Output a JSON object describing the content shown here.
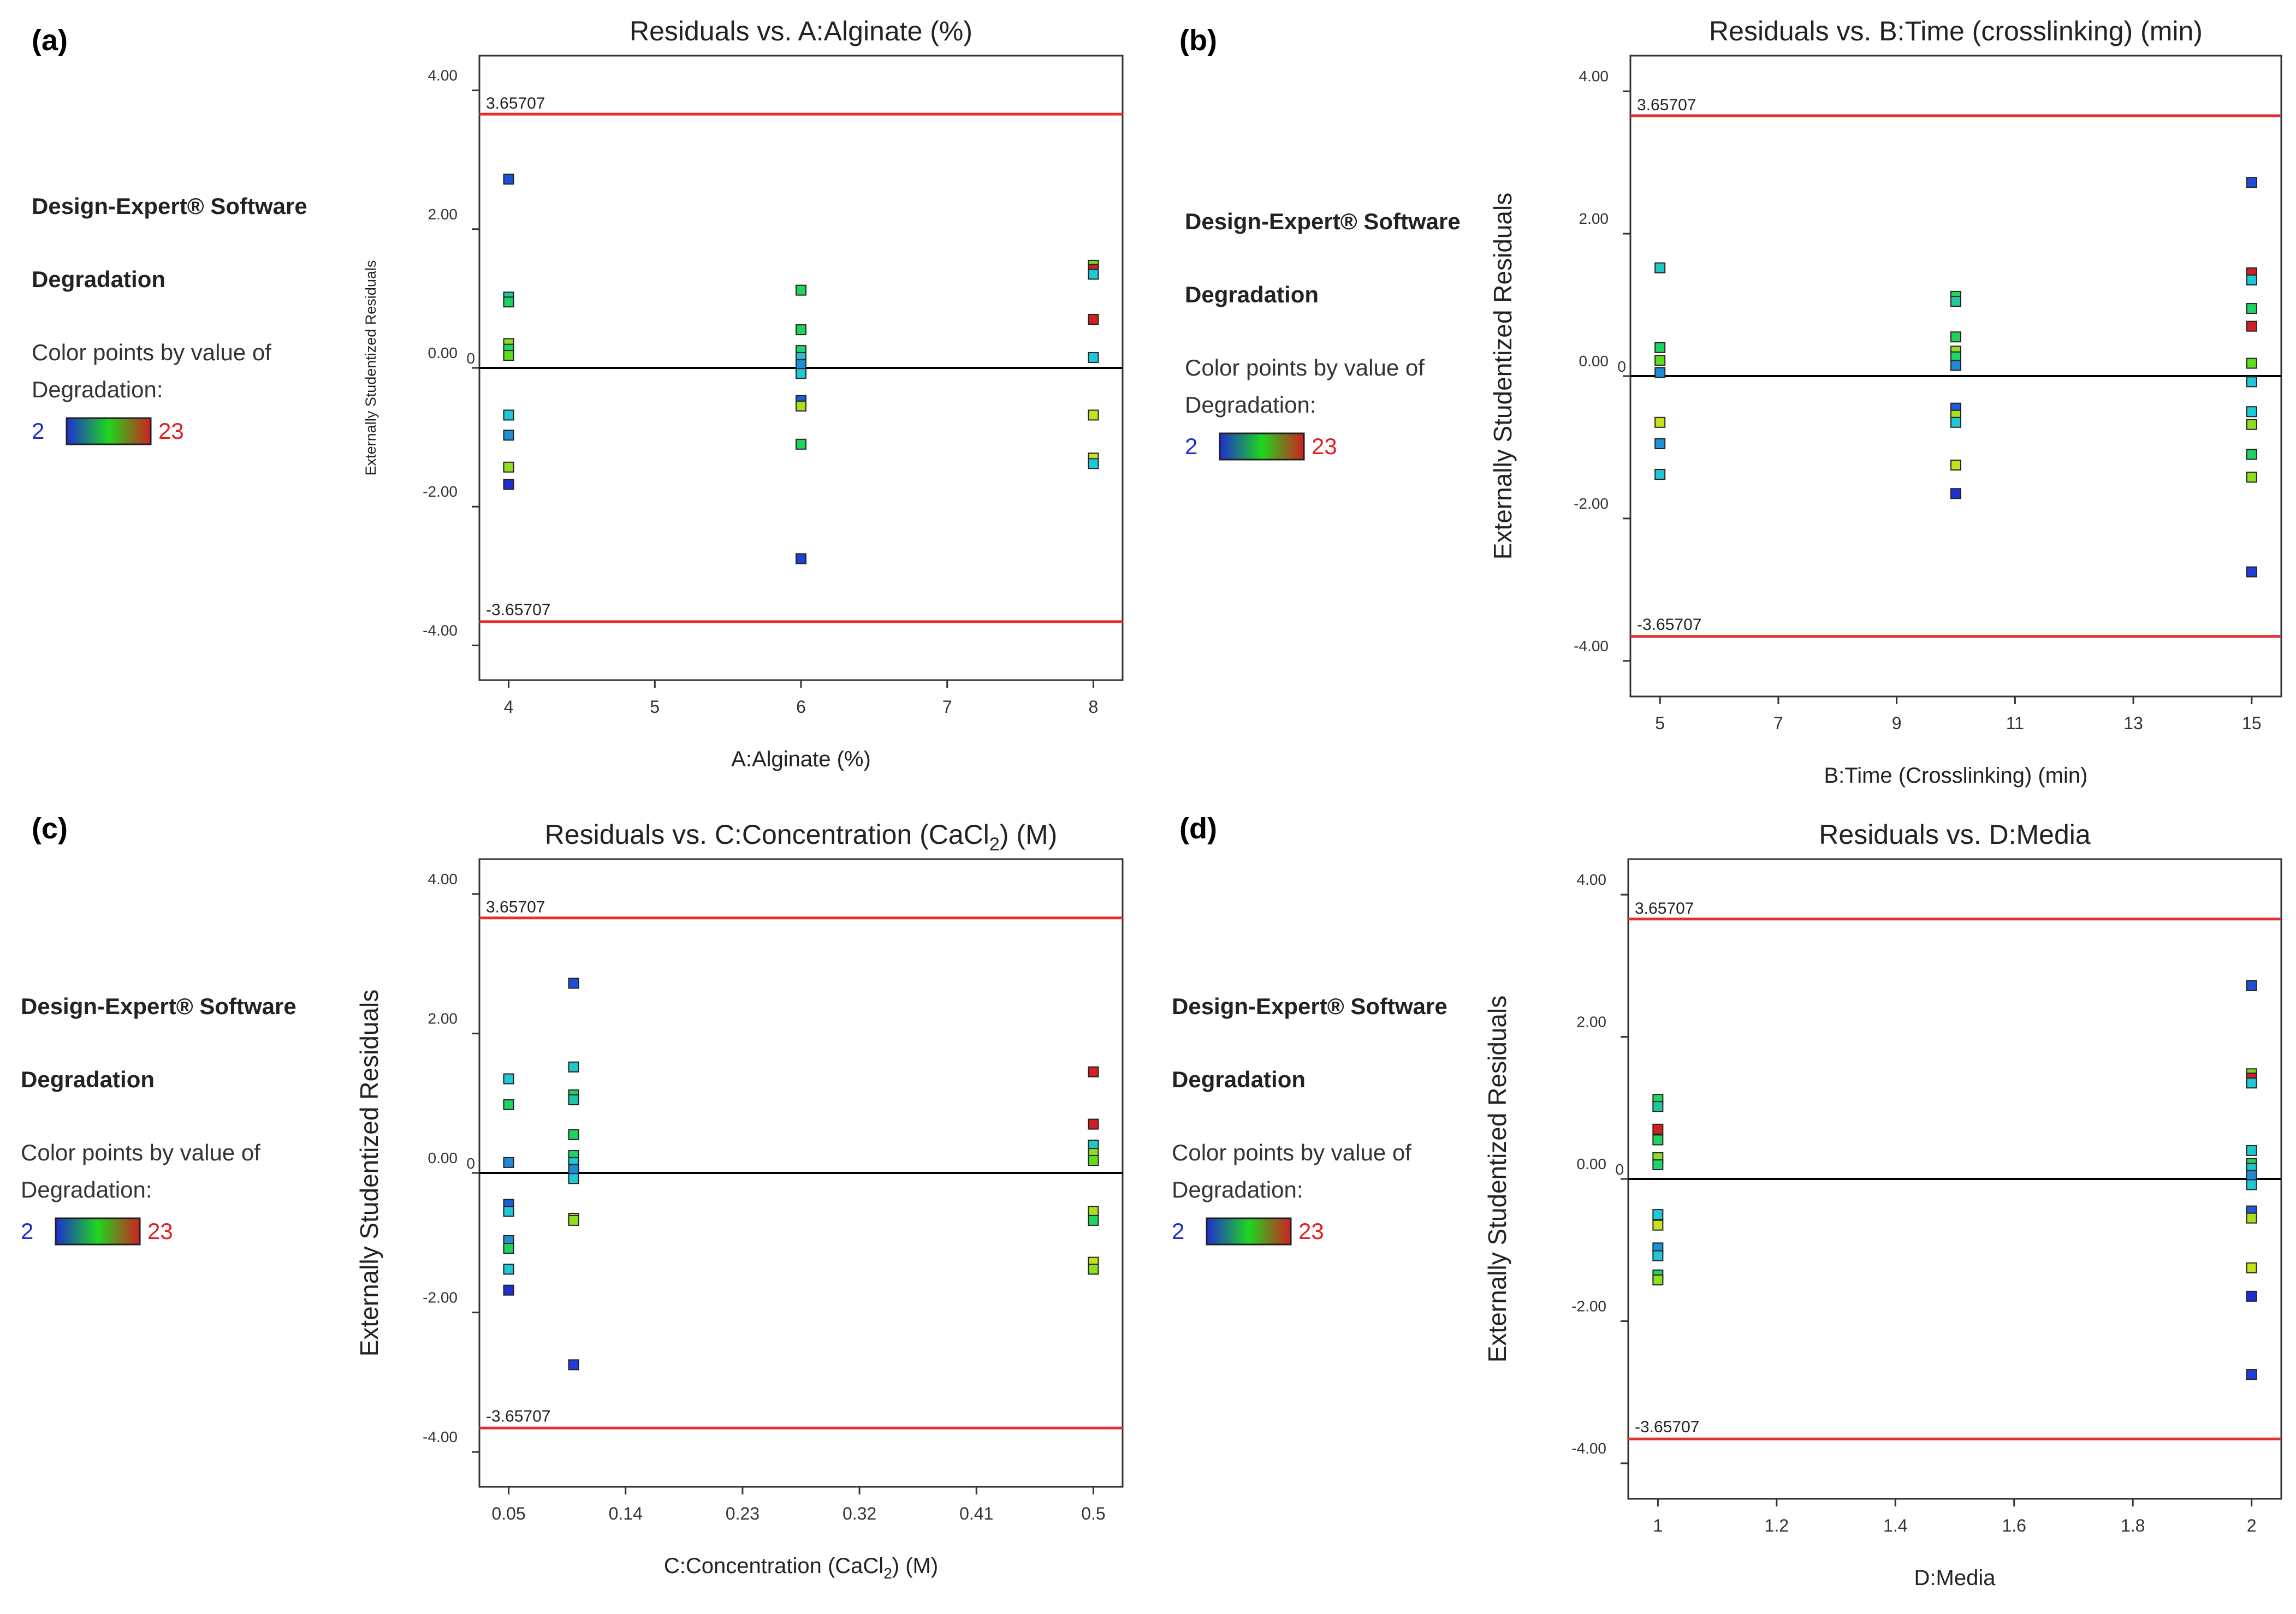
{
  "legend_text": {
    "software": "Design-Expert® Software",
    "response": "Degradation",
    "color_by": "Color points by value of",
    "color_by_2": "Degradation:",
    "min": "2",
    "max": "23",
    "colors": {
      "low": "#1e2fd0",
      "mid": "#1ed61e",
      "high": "#d02020"
    }
  },
  "chart_data": [
    {
      "panel": "(a)",
      "type": "scatter",
      "title": "Residuals vs. A:Alginate (%)",
      "xlabel": "A:Alginate (%)",
      "ylabel": "Externally Studentized Residuals",
      "xlim": [
        3.8,
        8.2
      ],
      "ylim": [
        -4.5,
        4.5
      ],
      "xticks": [
        "4",
        "5",
        "6",
        "7",
        "8"
      ],
      "yticks": [
        "4.00",
        "2.00",
        "0.00",
        "-2.00",
        "-4.00"
      ],
      "zero_label": "0",
      "limit_upper": 3.65707,
      "limit_lower": -3.65707,
      "limit_upper_label": "3.65707",
      "limit_lower_label": "-3.65707",
      "points": [
        {
          "x": 4,
          "y": 2.72,
          "c": "#1e4fd8"
        },
        {
          "x": 4,
          "y": 1.02,
          "c": "#1ec8a0"
        },
        {
          "x": 4,
          "y": 0.95,
          "c": "#1ed460"
        },
        {
          "x": 4,
          "y": 0.35,
          "c": "#8ee01e"
        },
        {
          "x": 4,
          "y": 0.27,
          "c": "#1ed45a"
        },
        {
          "x": 4,
          "y": 0.18,
          "c": "#60dc1e"
        },
        {
          "x": 4,
          "y": -0.68,
          "c": "#1ec8d8"
        },
        {
          "x": 4,
          "y": -0.97,
          "c": "#1e90d8"
        },
        {
          "x": 4,
          "y": -1.43,
          "c": "#8ee01e"
        },
        {
          "x": 4,
          "y": -1.68,
          "c": "#1e2fd0"
        },
        {
          "x": 6,
          "y": 1.12,
          "c": "#1ed45a"
        },
        {
          "x": 6,
          "y": 0.55,
          "c": "#1ed45a"
        },
        {
          "x": 6,
          "y": 0.25,
          "c": "#1ed46e"
        },
        {
          "x": 6,
          "y": 0.15,
          "c": "#1ec8c8"
        },
        {
          "x": 6,
          "y": 0.05,
          "c": "#1e8ad8"
        },
        {
          "x": 6,
          "y": -0.08,
          "c": "#1ec8d8"
        },
        {
          "x": 6,
          "y": -0.47,
          "c": "#1e5ad8"
        },
        {
          "x": 6,
          "y": -0.55,
          "c": "#a8e01e"
        },
        {
          "x": 6,
          "y": -1.1,
          "c": "#1ed45a"
        },
        {
          "x": 6,
          "y": -2.75,
          "c": "#1e3fd8"
        },
        {
          "x": 8,
          "y": 1.48,
          "c": "#78d81e"
        },
        {
          "x": 8,
          "y": 1.42,
          "c": "#d02020"
        },
        {
          "x": 8,
          "y": 1.35,
          "c": "#1ec8d8"
        },
        {
          "x": 8,
          "y": 0.7,
          "c": "#d02020"
        },
        {
          "x": 8,
          "y": 0.15,
          "c": "#1ec8d8"
        },
        {
          "x": 8,
          "y": -0.68,
          "c": "#c8e01e"
        },
        {
          "x": 8,
          "y": -1.3,
          "c": "#c8e01e"
        },
        {
          "x": 8,
          "y": -1.38,
          "c": "#1ec8d8"
        }
      ]
    },
    {
      "panel": "(b)",
      "type": "scatter",
      "title": "Residuals vs. B:Time (crosslinking) (min)",
      "xlabel": "B:Time (Crosslinking) (min)",
      "ylabel": "Externally Studentized Residuals",
      "xlim": [
        4.5,
        15.5
      ],
      "ylim": [
        -4.5,
        4.5
      ],
      "xticks": [
        "5",
        "7",
        "9",
        "11",
        "13",
        "15"
      ],
      "yticks": [
        "4.00",
        "2.00",
        "0.00",
        "-2.00",
        "-4.00"
      ],
      "zero_label": "0",
      "limit_upper": 3.65707,
      "limit_lower": -3.65707,
      "limit_upper_label": "3.65707",
      "limit_lower_label": "-3.65707",
      "points": [
        {
          "x": 5,
          "y": 1.52,
          "c": "#1ec8c8"
        },
        {
          "x": 5,
          "y": 0.4,
          "c": "#1ed45a"
        },
        {
          "x": 5,
          "y": 0.22,
          "c": "#60dc1e"
        },
        {
          "x": 5,
          "y": 0.05,
          "c": "#1e8ad8"
        },
        {
          "x": 5,
          "y": -0.65,
          "c": "#c8e01e"
        },
        {
          "x": 5,
          "y": -0.95,
          "c": "#1e90d8"
        },
        {
          "x": 5,
          "y": -1.38,
          "c": "#1ec8d8"
        },
        {
          "x": 10,
          "y": 1.12,
          "c": "#1ed45a"
        },
        {
          "x": 10,
          "y": 1.05,
          "c": "#1ec8a0"
        },
        {
          "x": 10,
          "y": 0.55,
          "c": "#1ed45a"
        },
        {
          "x": 10,
          "y": 0.35,
          "c": "#8ee01e"
        },
        {
          "x": 10,
          "y": 0.27,
          "c": "#1ed46e"
        },
        {
          "x": 10,
          "y": 0.15,
          "c": "#1e8ad8"
        },
        {
          "x": 10,
          "y": -0.45,
          "c": "#1e5ad8"
        },
        {
          "x": 10,
          "y": -0.55,
          "c": "#a8e01e"
        },
        {
          "x": 10,
          "y": -0.65,
          "c": "#1ec8d8"
        },
        {
          "x": 10,
          "y": -1.25,
          "c": "#c8e01e"
        },
        {
          "x": 10,
          "y": -1.65,
          "c": "#1e2fd0"
        },
        {
          "x": 15,
          "y": 2.72,
          "c": "#1e4fd8"
        },
        {
          "x": 15,
          "y": 1.45,
          "c": "#d02020"
        },
        {
          "x": 15,
          "y": 1.35,
          "c": "#1ec8d8"
        },
        {
          "x": 15,
          "y": 0.95,
          "c": "#1ed460"
        },
        {
          "x": 15,
          "y": 0.7,
          "c": "#d02020"
        },
        {
          "x": 15,
          "y": 0.18,
          "c": "#60dc1e"
        },
        {
          "x": 15,
          "y": -0.08,
          "c": "#1ec8d8"
        },
        {
          "x": 15,
          "y": -0.5,
          "c": "#1ec8d8"
        },
        {
          "x": 15,
          "y": -0.68,
          "c": "#8ee01e"
        },
        {
          "x": 15,
          "y": -1.1,
          "c": "#1ed45a"
        },
        {
          "x": 15,
          "y": -1.42,
          "c": "#8ee01e"
        },
        {
          "x": 15,
          "y": -2.75,
          "c": "#1e3fd8"
        }
      ]
    },
    {
      "panel": "(c)",
      "type": "scatter",
      "title": "Residuals vs. C:Concentration (CaCl",
      "title_sub": "2",
      "title_end": ") (M)",
      "xlabel": "C:Concentration (CaCl",
      "xlabel_sub": "2",
      "xlabel_end": ") (M)",
      "ylabel": "Externally Studentized Residuals",
      "xlim": [
        0.0275,
        0.5225
      ],
      "ylim": [
        -4.5,
        4.5
      ],
      "xticks": [
        "0.05",
        "0.14",
        "0.23",
        "0.32",
        "0.41",
        "0.5"
      ],
      "yticks": [
        "4.00",
        "2.00",
        "0.00",
        "-2.00",
        "-4.00"
      ],
      "zero_label": "0",
      "limit_upper": 3.65707,
      "limit_lower": -3.65707,
      "limit_upper_label": "3.65707",
      "limit_lower_label": "-3.65707",
      "points": [
        {
          "x": 0.05,
          "y": 1.35,
          "c": "#1ec8d8"
        },
        {
          "x": 0.05,
          "y": 0.98,
          "c": "#1ed460"
        },
        {
          "x": 0.05,
          "y": 0.15,
          "c": "#1e8ad8"
        },
        {
          "x": 0.05,
          "y": -0.45,
          "c": "#1e5ad8"
        },
        {
          "x": 0.05,
          "y": -0.55,
          "c": "#1ec8d8"
        },
        {
          "x": 0.05,
          "y": -0.97,
          "c": "#1e90d8"
        },
        {
          "x": 0.05,
          "y": -1.08,
          "c": "#1ed45a"
        },
        {
          "x": 0.05,
          "y": -1.38,
          "c": "#1ec8d8"
        },
        {
          "x": 0.05,
          "y": -1.68,
          "c": "#1e2fd0"
        },
        {
          "x": 0.1,
          "y": 2.72,
          "c": "#1e4fd8"
        },
        {
          "x": 0.1,
          "y": 1.52,
          "c": "#1ec8c8"
        },
        {
          "x": 0.1,
          "y": 1.12,
          "c": "#1ed45a"
        },
        {
          "x": 0.1,
          "y": 1.05,
          "c": "#1ec8a0"
        },
        {
          "x": 0.1,
          "y": 0.55,
          "c": "#1ed45a"
        },
        {
          "x": 0.1,
          "y": 0.25,
          "c": "#1ed46e"
        },
        {
          "x": 0.1,
          "y": 0.15,
          "c": "#1ec8c8"
        },
        {
          "x": 0.1,
          "y": 0.05,
          "c": "#1e8ad8"
        },
        {
          "x": 0.1,
          "y": -0.08,
          "c": "#1ec8d8"
        },
        {
          "x": 0.1,
          "y": -0.65,
          "c": "#c8e01e"
        },
        {
          "x": 0.1,
          "y": -0.68,
          "c": "#8ee01e"
        },
        {
          "x": 0.1,
          "y": -2.75,
          "c": "#1e3fd8"
        },
        {
          "x": 0.5,
          "y": 1.45,
          "c": "#d02020"
        },
        {
          "x": 0.5,
          "y": 0.7,
          "c": "#d02020"
        },
        {
          "x": 0.5,
          "y": 0.4,
          "c": "#1ec8c8"
        },
        {
          "x": 0.5,
          "y": 0.28,
          "c": "#8ee01e"
        },
        {
          "x": 0.5,
          "y": 0.18,
          "c": "#60dc1e"
        },
        {
          "x": 0.5,
          "y": -0.55,
          "c": "#a8e01e"
        },
        {
          "x": 0.5,
          "y": -0.68,
          "c": "#1ed45a"
        },
        {
          "x": 0.5,
          "y": -1.28,
          "c": "#c8e01e"
        },
        {
          "x": 0.5,
          "y": -1.38,
          "c": "#8ee01e"
        }
      ]
    },
    {
      "panel": "(d)",
      "type": "scatter",
      "title": "Residuals vs. D:Media",
      "xlabel": "D:Media",
      "ylabel": "Externally Studentized Residuals",
      "xlim": [
        0.95,
        2.05
      ],
      "ylim": [
        -4.5,
        4.5
      ],
      "xticks": [
        "1",
        "1.2",
        "1.4",
        "1.6",
        "1.8",
        "2"
      ],
      "yticks": [
        "4.00",
        "2.00",
        "0.00",
        "-2.00",
        "-4.00"
      ],
      "zero_label": "0",
      "limit_upper": 3.65707,
      "limit_lower": -3.65707,
      "limit_upper_label": "3.65707",
      "limit_lower_label": "-3.65707",
      "points": [
        {
          "x": 1,
          "y": 1.12,
          "c": "#1ed45a"
        },
        {
          "x": 1,
          "y": 1.02,
          "c": "#1ec8a0"
        },
        {
          "x": 1,
          "y": 0.7,
          "c": "#d02020"
        },
        {
          "x": 1,
          "y": 0.55,
          "c": "#1ed45a"
        },
        {
          "x": 1,
          "y": 0.3,
          "c": "#8ee01e"
        },
        {
          "x": 1,
          "y": 0.2,
          "c": "#1ed46e"
        },
        {
          "x": 1,
          "y": -0.5,
          "c": "#1ec8d8"
        },
        {
          "x": 1,
          "y": -0.65,
          "c": "#c8e01e"
        },
        {
          "x": 1,
          "y": -0.97,
          "c": "#1e90d8"
        },
        {
          "x": 1,
          "y": -1.08,
          "c": "#1ec8d8"
        },
        {
          "x": 1,
          "y": -1.35,
          "c": "#1ed45a"
        },
        {
          "x": 1,
          "y": -1.42,
          "c": "#8ee01e"
        },
        {
          "x": 2,
          "y": 2.72,
          "c": "#1e4fd8"
        },
        {
          "x": 2,
          "y": 1.48,
          "c": "#78d81e"
        },
        {
          "x": 2,
          "y": 1.42,
          "c": "#d02020"
        },
        {
          "x": 2,
          "y": 1.35,
          "c": "#1ec8d8"
        },
        {
          "x": 2,
          "y": 0.4,
          "c": "#1ec8c8"
        },
        {
          "x": 2,
          "y": 0.22,
          "c": "#1ed45a"
        },
        {
          "x": 2,
          "y": 0.15,
          "c": "#1ec8c8"
        },
        {
          "x": 2,
          "y": 0.05,
          "c": "#1e8ad8"
        },
        {
          "x": 2,
          "y": -0.08,
          "c": "#1ec8d8"
        },
        {
          "x": 2,
          "y": -0.45,
          "c": "#1e5ad8"
        },
        {
          "x": 2,
          "y": -0.55,
          "c": "#a8e01e"
        },
        {
          "x": 2,
          "y": -1.25,
          "c": "#c8e01e"
        },
        {
          "x": 2,
          "y": -1.65,
          "c": "#1e2fd0"
        },
        {
          "x": 2,
          "y": -2.75,
          "c": "#1e3fd8"
        }
      ]
    }
  ]
}
